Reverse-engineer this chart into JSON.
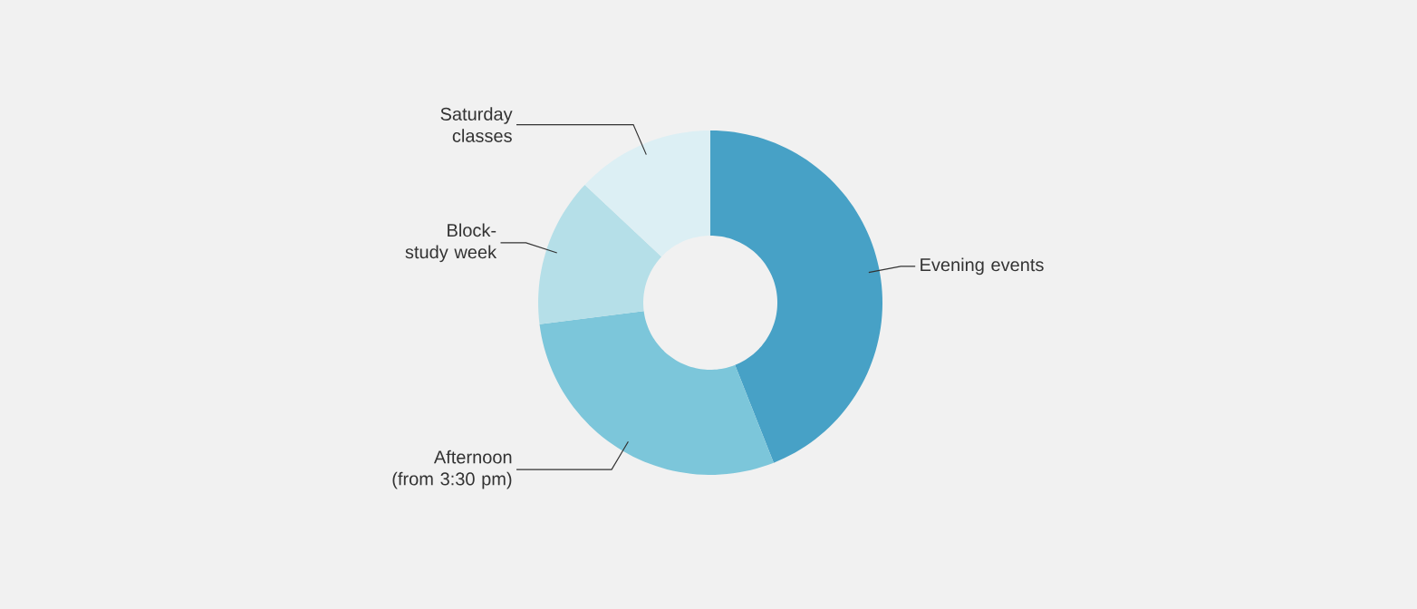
{
  "chart_data": {
    "type": "donut",
    "categories": [
      "Evening events",
      "Afternoon (from 3:30 pm)",
      "Block-study week",
      "Saturday classes"
    ],
    "values": [
      44,
      29,
      14,
      13
    ],
    "colors": [
      "#47a1c6",
      "#7cc6da",
      "#b5dfe8",
      "#dceff4"
    ]
  }
}
